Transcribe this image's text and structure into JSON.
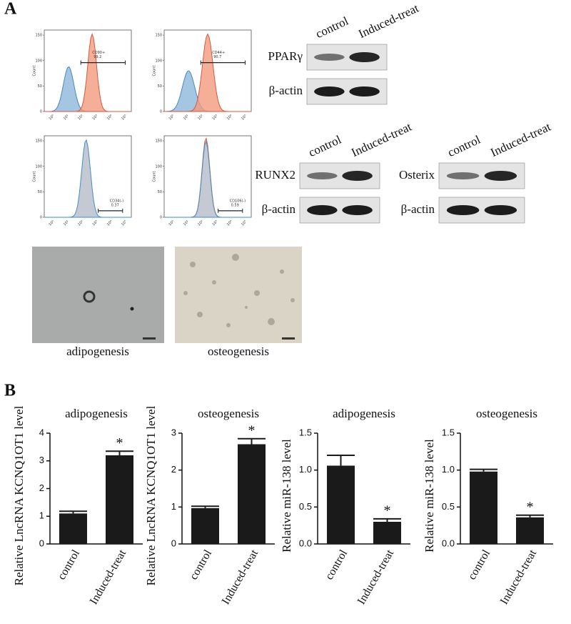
{
  "panel_labels": [
    "A",
    "B"
  ],
  "flow": {
    "ylabel": "Count",
    "yticks": [
      0,
      50,
      100,
      150
    ],
    "xticks": [
      "10⁰",
      "10¹",
      "10²",
      "10³",
      "10⁴",
      "10⁵"
    ],
    "panels": [
      {
        "gate": "CD90+",
        "percent": "99.2"
      },
      {
        "gate": "CD44+",
        "percent": "90.7"
      },
      {
        "gate": "CD34(-)",
        "percent": "0.37"
      },
      {
        "gate": "CD106(-)",
        "percent": "0.59"
      }
    ]
  },
  "blots": [
    {
      "lanes": [
        "control",
        "Induced-treat"
      ],
      "rows": [
        "PPARγ",
        "β-actin"
      ]
    },
    {
      "lanes": [
        "control",
        "Induced-treat"
      ],
      "rows": [
        "RUNX2",
        "β-actin"
      ]
    },
    {
      "lanes": [
        "control",
        "Induced-treat"
      ],
      "rows": [
        "Osterix",
        "β-actin"
      ]
    }
  ],
  "images": [
    {
      "caption": "adipogenesis"
    },
    {
      "caption": "osteogenesis"
    }
  ],
  "chart_data": [
    {
      "type": "bar",
      "title": "adipogenesis",
      "ylabel": "Relative LncRNA KCNQ1OT1 level",
      "categories": [
        "control",
        "Induced-treat"
      ],
      "values": [
        1.1,
        3.2
      ],
      "errors": [
        0.08,
        0.15
      ],
      "annotations": [
        {
          "index": 1,
          "text": "*"
        }
      ],
      "color": "#1a1a1a",
      "ylim": [
        0,
        4
      ],
      "yticks": [
        0,
        1,
        2,
        3,
        4
      ]
    },
    {
      "type": "bar",
      "title": "osteogenesis",
      "ylabel": "Relative LncRNA KCNQ1OT1 level",
      "categories": [
        "control",
        "Induced-treat"
      ],
      "values": [
        0.97,
        2.7
      ],
      "errors": [
        0.05,
        0.15
      ],
      "annotations": [
        {
          "index": 1,
          "text": "*"
        }
      ],
      "color": "#1a1a1a",
      "ylim": [
        0,
        3
      ],
      "yticks": [
        0,
        1,
        2,
        3
      ]
    },
    {
      "type": "bar",
      "title": "adipogenesis",
      "ylabel": "Relative miR-138 level",
      "categories": [
        "control",
        "Induced-treat"
      ],
      "values": [
        1.06,
        0.3
      ],
      "errors": [
        0.14,
        0.04
      ],
      "annotations": [
        {
          "index": 1,
          "text": "*"
        }
      ],
      "color": "#1a1a1a",
      "ylim": [
        0,
        1.5
      ],
      "yticks": [
        {
          "value": 0,
          "label": "0.0"
        },
        0.5,
        {
          "value": 1,
          "label": "1.0"
        },
        1.5
      ]
    },
    {
      "type": "bar",
      "title": "osteogenesis",
      "ylabel": "Relative miR-138 level",
      "categories": [
        "control",
        "Induced-treat"
      ],
      "values": [
        0.98,
        0.36
      ],
      "errors": [
        0.03,
        0.03
      ],
      "annotations": [
        {
          "index": 1,
          "text": "*"
        }
      ],
      "color": "#1a1a1a",
      "ylim": [
        0,
        1.5
      ],
      "yticks": [
        {
          "value": 0,
          "label": "0.0"
        },
        0.5,
        {
          "value": 1,
          "label": "1.0"
        },
        1.5
      ]
    }
  ]
}
